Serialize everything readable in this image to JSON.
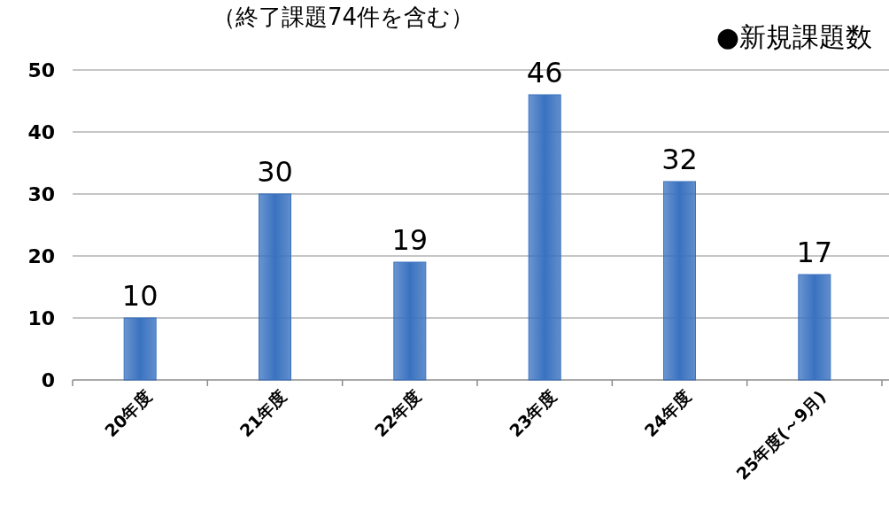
{
  "chart_data": {
    "type": "bar",
    "title": "（終了課題74件を含む）",
    "subtitle": "●新規課題数",
    "categories": [
      "20年度",
      "21年度",
      "22年度",
      "23年度",
      "24年度",
      "25年度(～9月)"
    ],
    "values": [
      10,
      30,
      19,
      46,
      32,
      17
    ],
    "color": "#3a72c0",
    "ylim": [
      0,
      50
    ],
    "yticks": [
      0,
      10,
      20,
      30,
      40,
      50
    ],
    "grid": "y",
    "data_labels": true
  }
}
